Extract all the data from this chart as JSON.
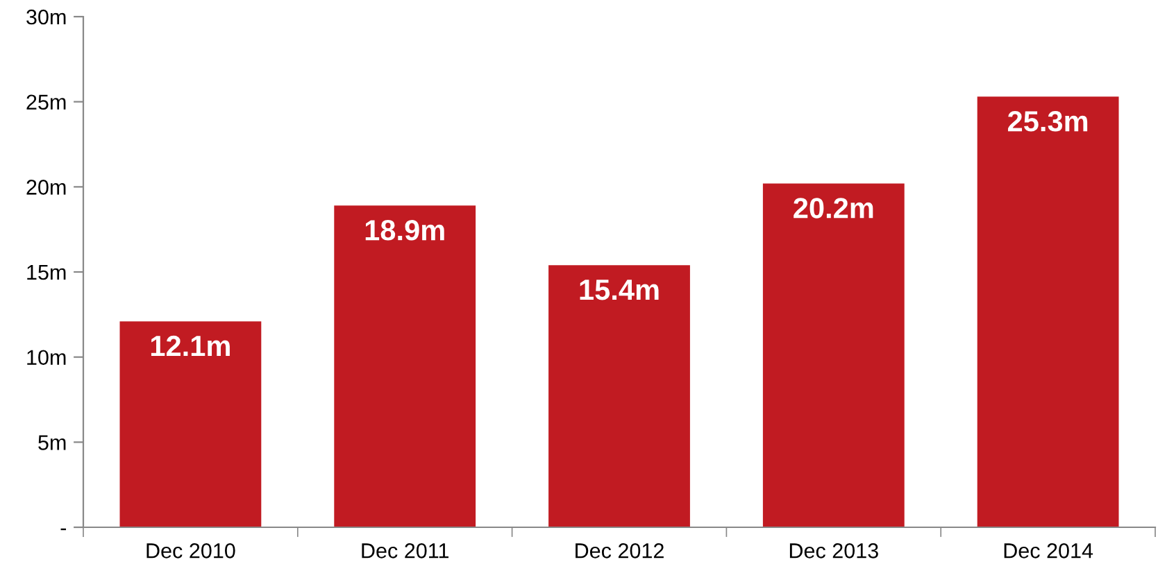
{
  "chart_data": {
    "type": "bar",
    "categories": [
      "Dec 2010",
      "Dec 2011",
      "Dec 2012",
      "Dec 2013",
      "Dec 2014"
    ],
    "values": [
      12.1,
      18.9,
      15.4,
      20.2,
      25.3
    ],
    "value_labels": [
      "12.1m",
      "18.9m",
      "15.4m",
      "20.2m",
      "25.3m"
    ],
    "color": "#c11b22",
    "ylim": [
      0,
      30
    ],
    "yticks": [
      {
        "value": 0,
        "label": "-"
      },
      {
        "value": 5,
        "label": "5m"
      },
      {
        "value": 10,
        "label": "10m"
      },
      {
        "value": 15,
        "label": "15m"
      },
      {
        "value": 20,
        "label": "20m"
      },
      {
        "value": 25,
        "label": "25m"
      },
      {
        "value": 30,
        "label": "30m"
      }
    ],
    "grid": false,
    "legend": false
  }
}
